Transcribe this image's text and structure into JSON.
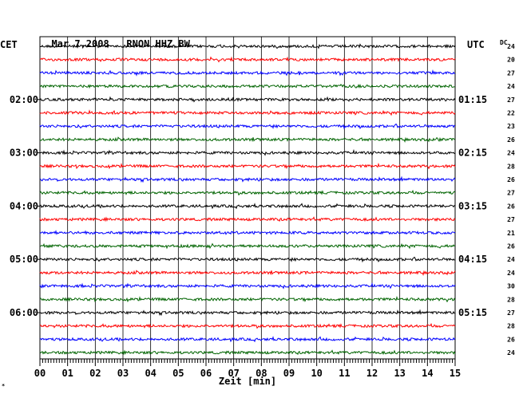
{
  "header": {
    "date": "Mar 7,2008",
    "station": "RNON HHZ BW",
    "left_zone": "CET",
    "right_zone": "UTC",
    "dc_label": "DC"
  },
  "chart_data": {
    "type": "line",
    "title": "Mar 7,2008   RNON HHZ BW",
    "xlabel": "Zeit [min]",
    "ylabel": "",
    "xlim": [
      0,
      15
    ],
    "x_ticks": [
      "00",
      "01",
      "02",
      "03",
      "04",
      "05",
      "06",
      "07",
      "08",
      "09",
      "10",
      "11",
      "12",
      "13",
      "14",
      "15"
    ],
    "grid": true,
    "trace_colors": [
      "#000000",
      "#ff0000",
      "#0000ff",
      "#006400"
    ],
    "left_time_labels": [
      {
        "row": 4,
        "label": "02:00"
      },
      {
        "row": 8,
        "label": "03:00"
      },
      {
        "row": 12,
        "label": "04:00"
      },
      {
        "row": 16,
        "label": "05:00"
      },
      {
        "row": 20,
        "label": "06:00"
      }
    ],
    "right_time_labels": [
      {
        "row": 4,
        "label": "01:15"
      },
      {
        "row": 8,
        "label": "02:15"
      },
      {
        "row": 12,
        "label": "03:15"
      },
      {
        "row": 16,
        "label": "04:15"
      },
      {
        "row": 20,
        "label": "05:15"
      }
    ],
    "dc_offsets": [
      24,
      20,
      27,
      24,
      27,
      22,
      23,
      26,
      24,
      28,
      26,
      27,
      26,
      27,
      21,
      26,
      24,
      24,
      30,
      28,
      27,
      28,
      26,
      24
    ]
  }
}
